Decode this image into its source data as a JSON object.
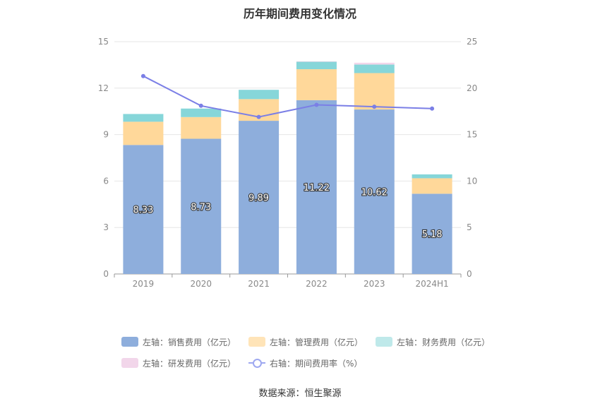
{
  "title": "历年期间费用变化情况",
  "source": "数据来源：恒生聚源",
  "chart_data": {
    "type": "bar",
    "stacked": true,
    "categories": [
      "2019",
      "2020",
      "2021",
      "2022",
      "2023",
      "2024H1"
    ],
    "left_axis": {
      "ylim": [
        0,
        15
      ],
      "ticks": [
        "0",
        "3",
        "6",
        "9",
        "12",
        "15"
      ]
    },
    "right_axis": {
      "ylim": [
        0,
        25
      ],
      "ticks": [
        "0",
        "5",
        "10",
        "15",
        "20",
        "25"
      ]
    },
    "series": [
      {
        "name": "左轴：销售费用（亿元）",
        "axis": "left",
        "color": "#8eaedc",
        "values": [
          8.33,
          8.73,
          9.89,
          11.22,
          10.62,
          5.18
        ],
        "labels": [
          "8.33",
          "8.73",
          "9.89",
          "11.22",
          "10.62",
          "5.18"
        ]
      },
      {
        "name": "左轴：管理费用（亿元）",
        "axis": "left",
        "color": "#ffd89a",
        "values": [
          1.5,
          1.4,
          1.4,
          2.0,
          2.35,
          1.0
        ]
      },
      {
        "name": "左轴：财务费用（亿元）",
        "axis": "left",
        "color": "#86d6d9",
        "values": [
          0.5,
          0.55,
          0.6,
          0.48,
          0.55,
          0.25
        ]
      },
      {
        "name": "左轴：研发费用（亿元）",
        "axis": "left",
        "color": "#f2d6ea",
        "values": [
          0.0,
          0.0,
          0.0,
          0.03,
          0.12,
          0.0
        ]
      },
      {
        "name": "右轴：期间费用率（%）",
        "axis": "right",
        "type": "line",
        "color": "#7b7fe6",
        "values": [
          21.3,
          18.1,
          16.9,
          18.2,
          18.0,
          17.8
        ]
      }
    ],
    "grid": true,
    "legend": "bottom"
  }
}
